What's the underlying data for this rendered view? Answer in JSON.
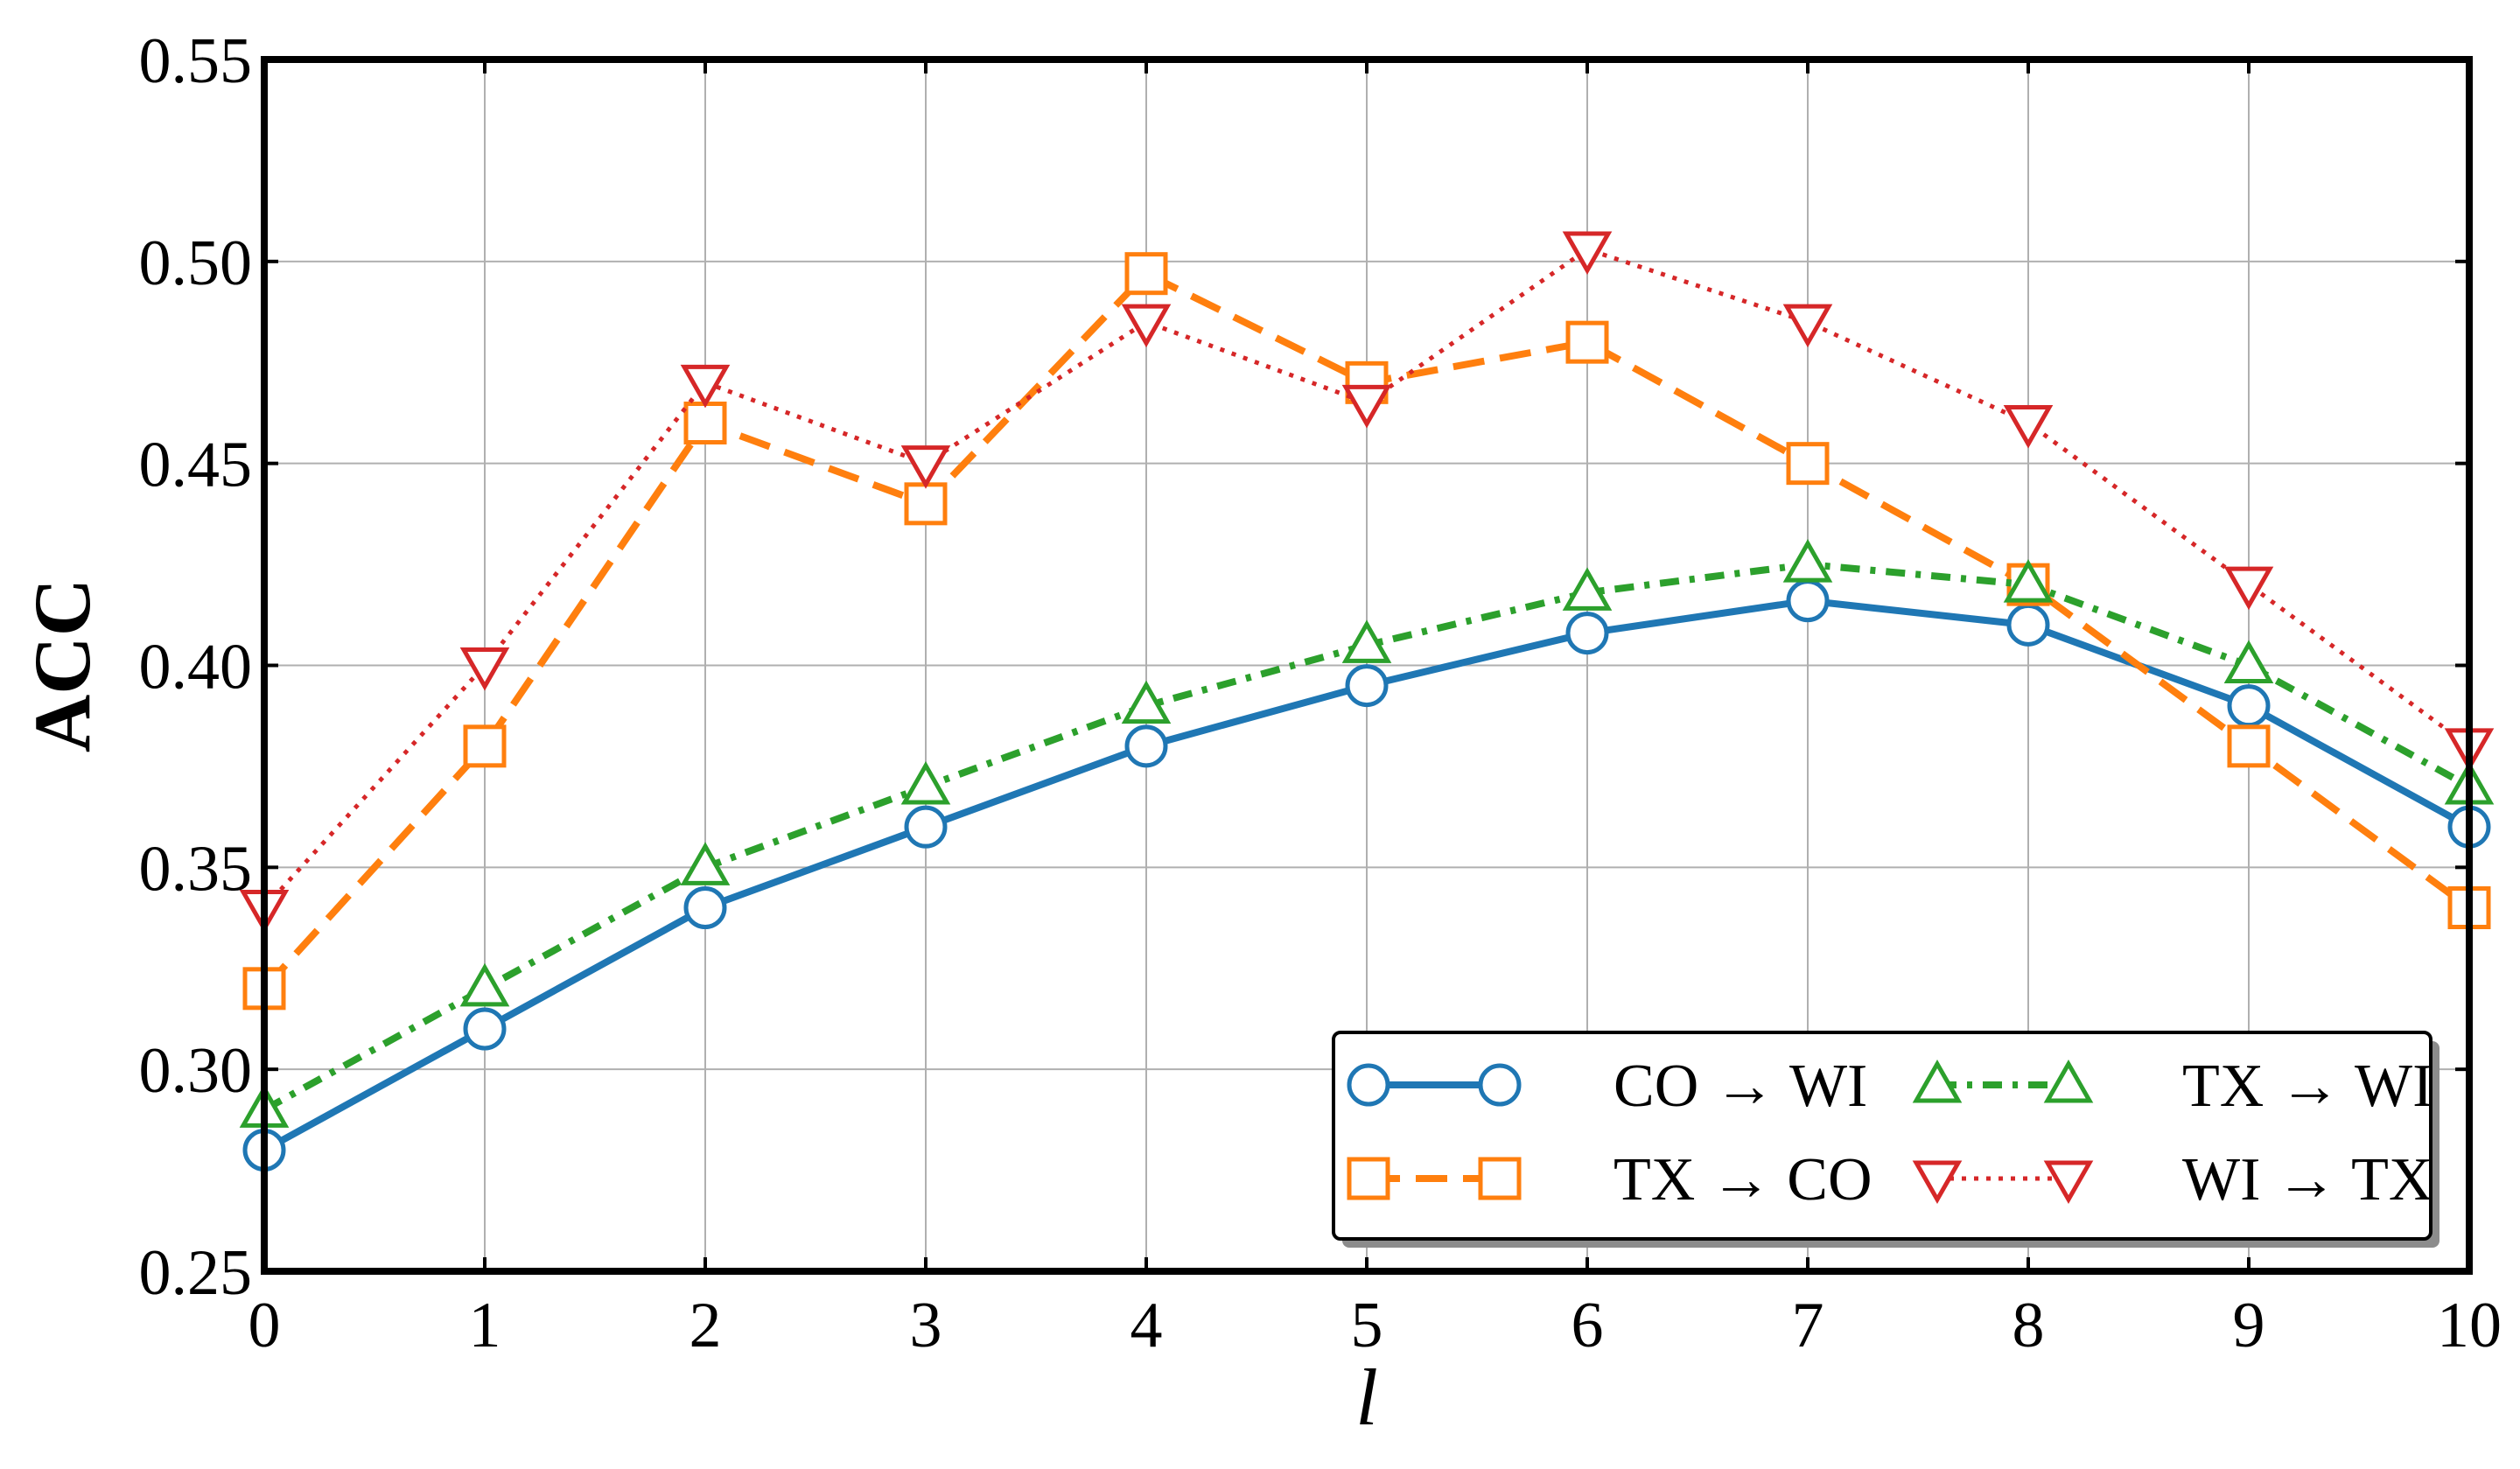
{
  "chart_data": {
    "type": "line",
    "xlabel": "l",
    "ylabel": "ACC",
    "xlim": [
      0,
      10
    ],
    "ylim": [
      0.25,
      0.55
    ],
    "grid": true,
    "legend_position": "lower-right",
    "x": [
      0,
      1,
      2,
      3,
      4,
      5,
      6,
      7,
      8,
      9,
      10
    ],
    "x_tick_labels": [
      "0",
      "1",
      "2",
      "3",
      "4",
      "5",
      "6",
      "7",
      "8",
      "9",
      "10"
    ],
    "y_ticks": [
      0.25,
      0.3,
      0.35,
      0.4,
      0.45,
      0.5,
      0.55
    ],
    "y_tick_labels": [
      "0.25",
      "0.30",
      "0.35",
      "0.40",
      "0.45",
      "0.50",
      "0.55"
    ],
    "series": [
      {
        "name": "CO → WI",
        "color": "#1f77b4",
        "marker": "circle",
        "linestyle": "solid",
        "values": [
          0.28,
          0.31,
          0.34,
          0.36,
          0.38,
          0.395,
          0.408,
          0.416,
          0.41,
          0.39,
          0.36
        ]
      },
      {
        "name": "TX → CO",
        "color": "#ff7f0e",
        "marker": "square",
        "linestyle": "dashed",
        "values": [
          0.32,
          0.38,
          0.46,
          0.44,
          0.497,
          0.47,
          0.48,
          0.45,
          0.42,
          0.38,
          0.34
        ]
      },
      {
        "name": "TX → WI",
        "color": "#2ca02c",
        "marker": "triangle-up",
        "linestyle": "dashdot",
        "values": [
          0.29,
          0.32,
          0.35,
          0.37,
          0.39,
          0.405,
          0.418,
          0.425,
          0.42,
          0.4,
          0.37
        ]
      },
      {
        "name": "WI → TX",
        "color": "#d62728",
        "marker": "triangle-down",
        "linestyle": "dotted",
        "values": [
          0.34,
          0.4,
          0.47,
          0.45,
          0.485,
          0.465,
          0.503,
          0.485,
          0.46,
          0.42,
          0.38
        ]
      }
    ]
  }
}
